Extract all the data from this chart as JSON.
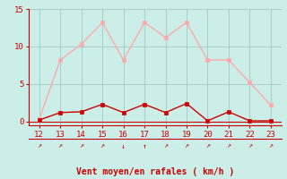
{
  "x": [
    12,
    13,
    14,
    15,
    16,
    17,
    18,
    19,
    20,
    21,
    22,
    23
  ],
  "y_rafales": [
    0.3,
    8.2,
    10.3,
    13.2,
    8.2,
    13.2,
    11.2,
    13.2,
    8.2,
    8.2,
    5.2,
    2.2
  ],
  "y_moyen": [
    0.2,
    1.2,
    1.3,
    2.3,
    1.2,
    2.3,
    1.2,
    2.4,
    0.1,
    1.3,
    0.1,
    0.1
  ],
  "xlabel": "Vent moyen/en rafales ( km/h )",
  "ylim": [
    -0.5,
    15
  ],
  "yticks": [
    0,
    5,
    10,
    15
  ],
  "xlim": [
    11.5,
    23.5
  ],
  "xticks": [
    12,
    13,
    14,
    15,
    16,
    17,
    18,
    19,
    20,
    21,
    22,
    23
  ],
  "bg_color": "#cceee8",
  "grid_color": "#9bbfbf",
  "line_color_rafales": "#ffaaaa",
  "line_color_moyen": "#cc0000",
  "xlabel_color": "#cc0000",
  "tick_color": "#cc0000",
  "arrows": [
    "↗",
    "↗",
    "↗",
    "↗",
    "↓",
    "↑",
    "↗",
    "↗",
    "↗",
    "↗",
    "↗",
    "↗"
  ],
  "tick_fontsize": 6.5,
  "label_fontsize": 7,
  "arrow_fontsize": 6
}
